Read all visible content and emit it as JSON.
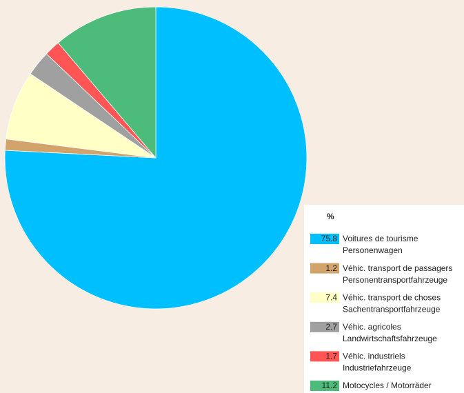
{
  "chart_data": {
    "type": "pie",
    "legend_title": "%",
    "categories": [
      [
        "Voitures de tourisme",
        "Personenwagen"
      ],
      [
        "Véhic. transport de passagers",
        "Personentransportfahrzeuge"
      ],
      [
        "Véhic. transport de choses",
        "Sachentransportfahrzeuge"
      ],
      [
        "Véhic. agricoles",
        "Landwirtschaftsfahrzeuge"
      ],
      [
        "Véhic. industriels",
        "Industriefahrzeuge"
      ],
      [
        "Motocycles / Motorräder"
      ]
    ],
    "values": [
      75.8,
      1.2,
      7.4,
      2.7,
      1.7,
      11.2
    ],
    "colors": [
      "#00bfff",
      "#d3a36c",
      "#ffffc6",
      "#a0a0a0",
      "#ff5555",
      "#4dbb7a"
    ],
    "legend": "lower right"
  }
}
